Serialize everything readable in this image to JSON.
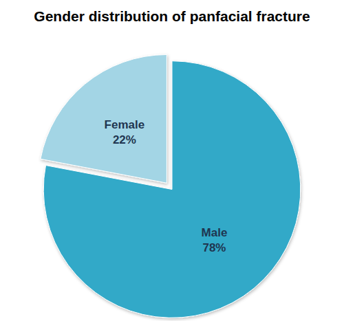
{
  "chart_data": {
    "type": "pie",
    "title": "Gender distribution of panfacial fracture",
    "categories": [
      "Male",
      "Female"
    ],
    "values": [
      78,
      22
    ],
    "value_labels": [
      "78%",
      "22%"
    ],
    "colors": [
      "#31a9c8",
      "#a3d5e5"
    ],
    "data_labels": true
  }
}
